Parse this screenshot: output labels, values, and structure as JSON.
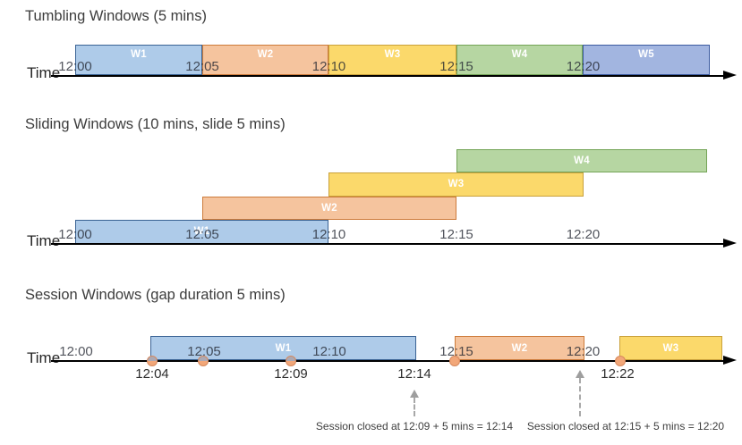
{
  "palette": {
    "blue": {
      "fill": "#AECBE9",
      "border": "#3A6394"
    },
    "orange": {
      "fill": "#F5C49E",
      "border": "#CD7B3B"
    },
    "yellow": {
      "fill": "#FBD96B",
      "border": "#C9A13B"
    },
    "green": {
      "fill": "#B6D6A2",
      "border": "#74A457"
    },
    "periwinkle": {
      "fill": "#A2B5E0",
      "border": "#3C5BA0"
    },
    "event_dot": {
      "fill": "#F2A779",
      "border": "#D6885C",
      "muted_top": "#ACA9B4"
    },
    "axis": "#000000",
    "annotation_arrow": "#A8A8A8"
  },
  "sections": {
    "tumbling": {
      "title": "Tumbling Windows (5 mins)",
      "time_label": "Time",
      "ticks": [
        "12:00",
        "12:05",
        "12:10",
        "12:15",
        "12:20"
      ],
      "windows": [
        {
          "label": "W1",
          "color": "blue"
        },
        {
          "label": "W2",
          "color": "orange"
        },
        {
          "label": "W3",
          "color": "yellow"
        },
        {
          "label": "W4",
          "color": "green"
        },
        {
          "label": "W5",
          "color": "periwinkle"
        }
      ]
    },
    "sliding": {
      "title": "Sliding Windows (10 mins, slide 5 mins)",
      "time_label": "Time",
      "ticks": [
        "12:00",
        "12:05",
        "12:10",
        "12:15",
        "12:20"
      ],
      "windows": [
        {
          "label": "W1",
          "color": "blue"
        },
        {
          "label": "W2",
          "color": "orange"
        },
        {
          "label": "W3",
          "color": "yellow"
        },
        {
          "label": "W4",
          "color": "green"
        }
      ]
    },
    "session": {
      "title": "Session Windows (gap duration 5 mins)",
      "time_label": "Time",
      "ticks": [
        "12:00",
        "12:05",
        "12:10",
        "12:15",
        "12:20"
      ],
      "windows": [
        {
          "label": "W1",
          "color": "blue"
        },
        {
          "label": "W2",
          "color": "orange"
        },
        {
          "label": "W3",
          "color": "yellow"
        }
      ],
      "below_axis_labels": [
        "12:04",
        "12:09",
        "12:14",
        "12:22"
      ],
      "annotations": [
        "Session closed at 12:09 + 5 mins = 12:14",
        "Session closed at 12:15 + 5 mins = 12:20"
      ]
    }
  }
}
